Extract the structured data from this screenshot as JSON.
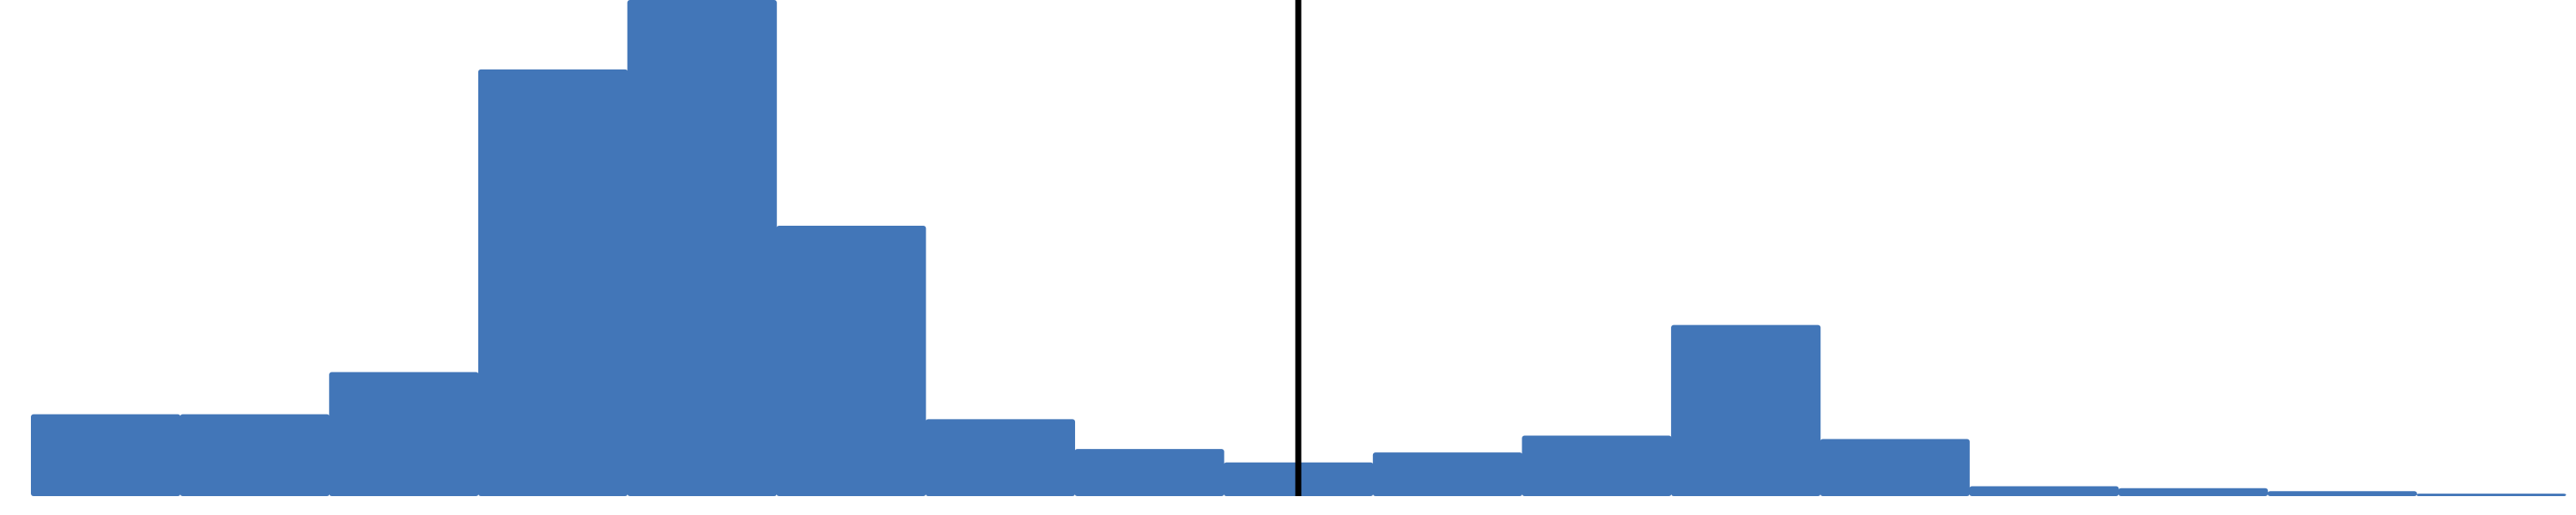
{
  "chart_data": {
    "type": "bar",
    "title": "",
    "xlabel": "",
    "ylabel": "",
    "grid": false,
    "legend": "none",
    "ylim": [
      0,
      100
    ],
    "bars": [
      {
        "x_start": 0,
        "x_end": 1,
        "value": 16.5
      },
      {
        "x_start": 1,
        "x_end": 2,
        "value": 16.5
      },
      {
        "x_start": 2,
        "x_end": 3,
        "value": 25.0
      },
      {
        "x_start": 3,
        "x_end": 4,
        "value": 86.0
      },
      {
        "x_start": 4,
        "x_end": 5,
        "value": 100.0
      },
      {
        "x_start": 5,
        "x_end": 6,
        "value": 54.5
      },
      {
        "x_start": 6,
        "x_end": 7,
        "value": 15.5
      },
      {
        "x_start": 7,
        "x_end": 8,
        "value": 9.5
      },
      {
        "x_start": 8,
        "x_end": 9,
        "value": 6.8
      },
      {
        "x_start": 9,
        "x_end": 10,
        "value": 8.8
      },
      {
        "x_start": 10,
        "x_end": 11,
        "value": 12.2
      },
      {
        "x_start": 11,
        "x_end": 12,
        "value": 34.5
      },
      {
        "x_start": 12,
        "x_end": 13,
        "value": 11.5
      },
      {
        "x_start": 13,
        "x_end": 14,
        "value": 2.0
      },
      {
        "x_start": 14,
        "x_end": 15,
        "value": 1.6
      },
      {
        "x_start": 15,
        "x_end": 16,
        "value": 1.0
      },
      {
        "x_start": 16,
        "x_end": 17,
        "value": 0.5
      }
    ],
    "xlim": [
      0,
      17
    ],
    "reference_line_x": 8.5,
    "colors": {
      "bar": "#4276b8",
      "reference_line": "#000000",
      "background": "#ffffff"
    }
  }
}
